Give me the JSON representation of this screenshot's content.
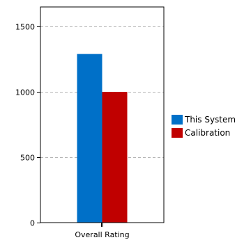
{
  "chart_data": {
    "type": "bar",
    "categories": [
      "Overall Rating"
    ],
    "series": [
      {
        "name": "This System",
        "values": [
          1290
        ],
        "color": "#0070c8"
      },
      {
        "name": "Calibration",
        "values": [
          1000
        ],
        "color": "#c00000"
      }
    ],
    "ylim": [
      0,
      1650
    ],
    "yticks": [
      0,
      500,
      1000,
      1500
    ],
    "grid": true,
    "legend_position": "right"
  }
}
